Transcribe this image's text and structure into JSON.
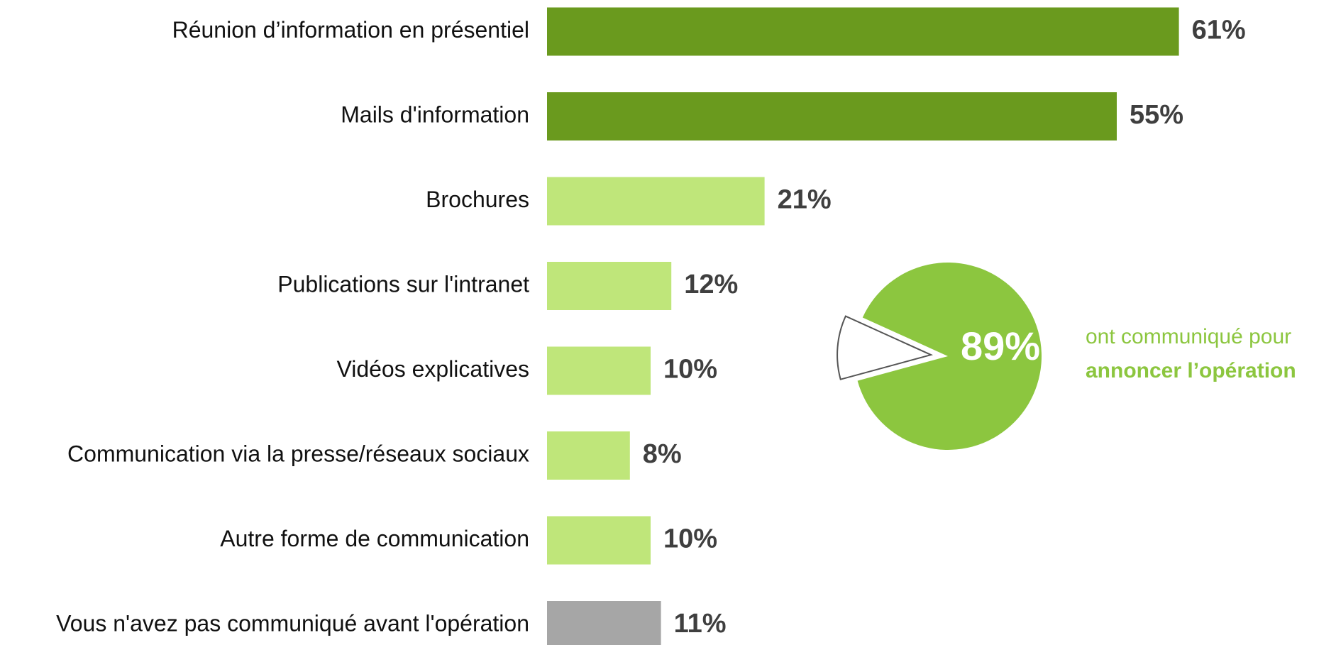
{
  "chart_data": [
    {
      "type": "hbar",
      "categories": [
        "Réunion d’information en présentiel",
        "Mails d'information",
        "Brochures",
        "Publications sur l'intranet",
        "Vidéos explicatives",
        "Communication via la presse/réseaux sociaux",
        "Autre forme de communication",
        "Vous n'avez pas communiqué avant l'opération"
      ],
      "values": [
        61,
        55,
        21,
        12,
        10,
        8,
        10,
        11
      ],
      "value_labels": [
        "61%",
        "55%",
        "21%",
        "12%",
        "10%",
        "8%",
        "10%",
        "11%"
      ],
      "colors": [
        "#6a9a1e",
        "#6a9a1e",
        "#bfe67a",
        "#bfe67a",
        "#bfe67a",
        "#bfe67a",
        "#bfe67a",
        "#a6a6a6"
      ]
    },
    {
      "type": "pie",
      "values": [
        89,
        11
      ],
      "value_labels": [
        "89%",
        null
      ],
      "colors": [
        "#8cc63f",
        "#ffffff"
      ],
      "annotations": [
        "ont communiqué pour",
        "annoncer l’opération"
      ]
    }
  ]
}
